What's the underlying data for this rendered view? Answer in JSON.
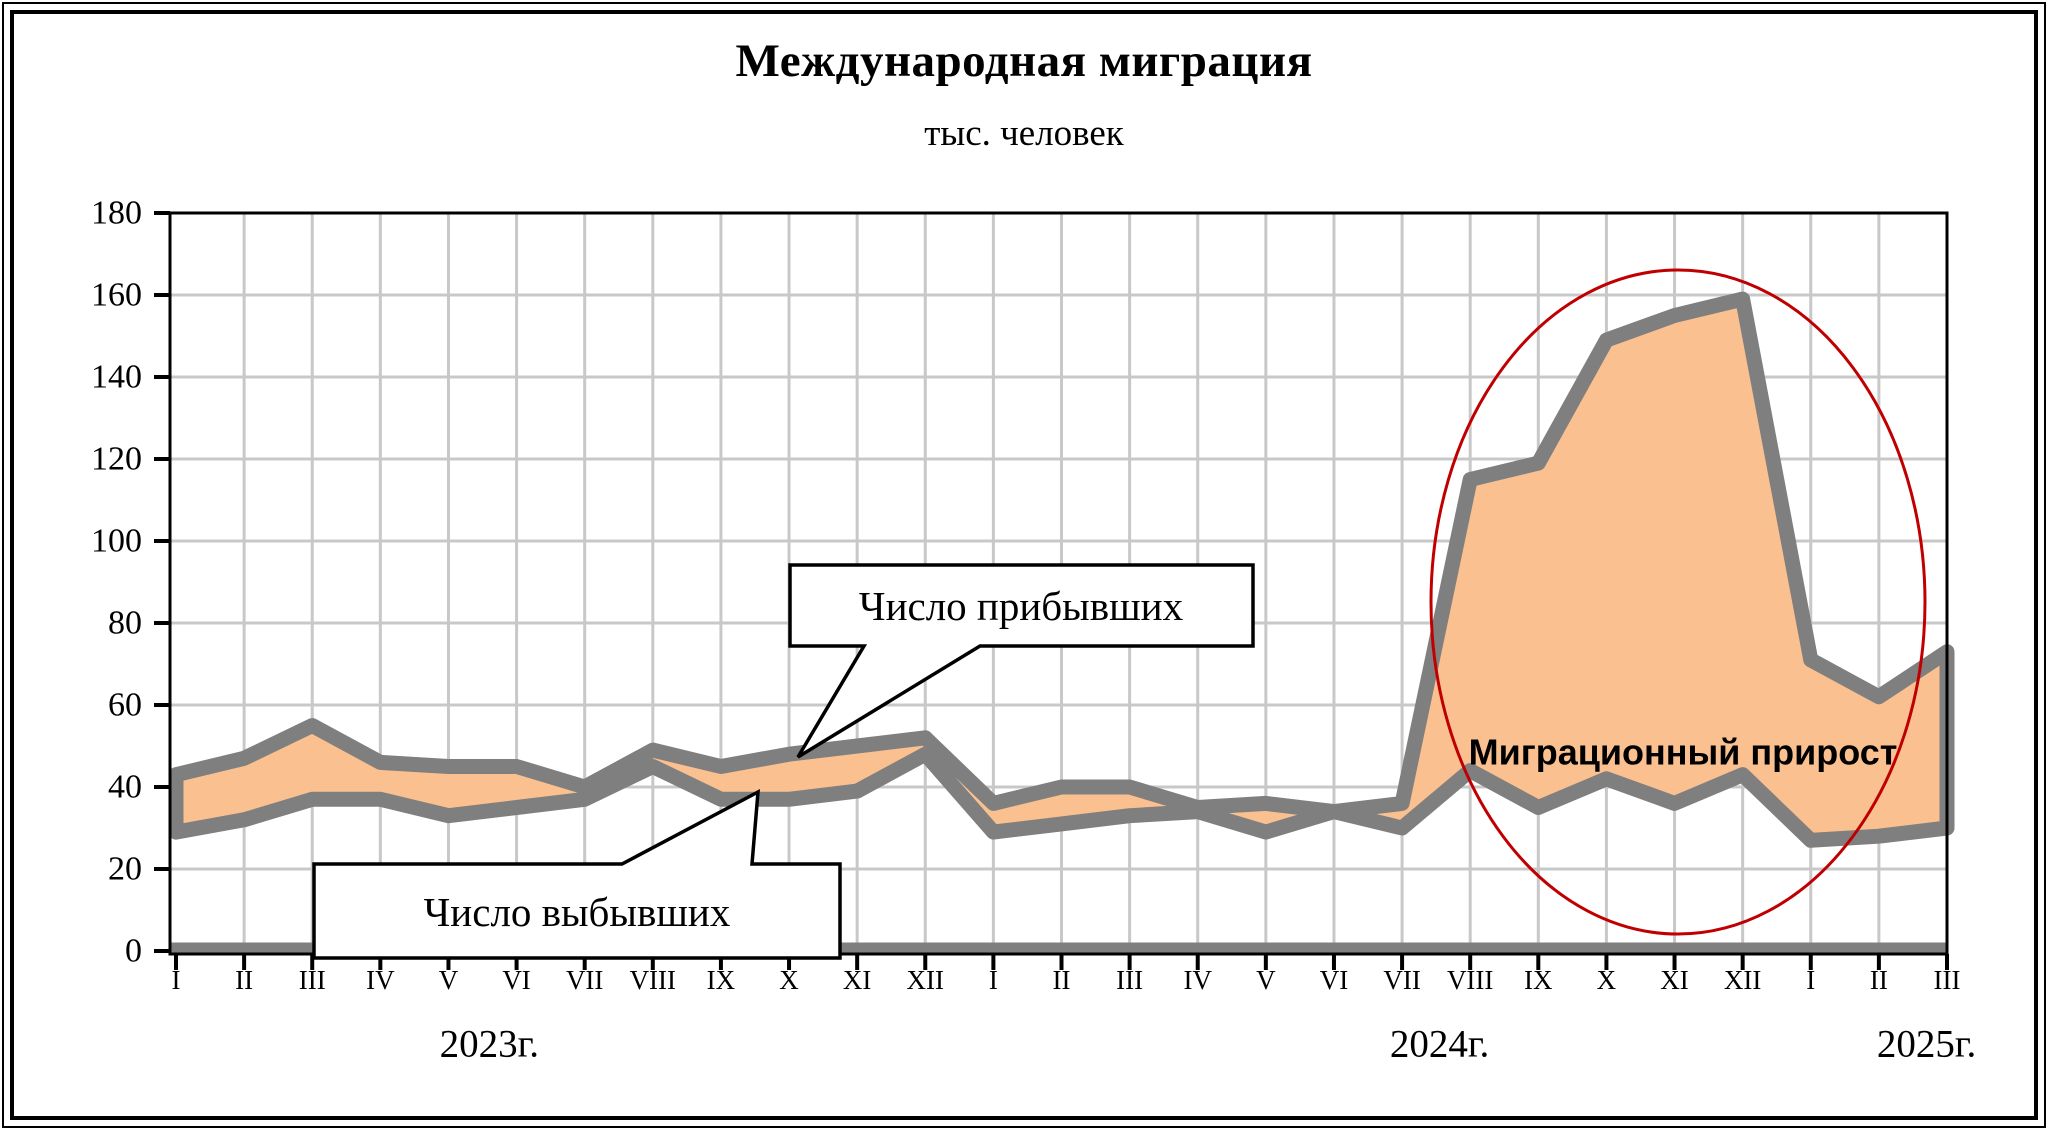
{
  "title": "Международная миграция",
  "subtitle": "тыс. человек",
  "colors": {
    "band_fill": "#FAC090",
    "series_line": "#7F7F7F",
    "gridline": "#C8C8C8",
    "axis": "#000000",
    "ellipse": "#C00000",
    "callout_bg": "#FFFFFF",
    "text": "#000000"
  },
  "chart_data": {
    "type": "area",
    "title": "Международная миграция",
    "subtitle": "тыс. человек",
    "ylim": [
      0,
      180
    ],
    "ytick_step": 20,
    "y_ticks": [
      0,
      20,
      40,
      60,
      80,
      100,
      120,
      140,
      160,
      180
    ],
    "grid": "on",
    "categories": [
      "I",
      "II",
      "III",
      "IV",
      "V",
      "VI",
      "VII",
      "VIII",
      "IX",
      "X",
      "XI",
      "XII",
      "I",
      "II",
      "III",
      "IV",
      "V",
      "VI",
      "VII",
      "VIII",
      "IX",
      "X",
      "XI",
      "XII",
      "I",
      "II",
      "III"
    ],
    "year_labels": [
      {
        "label": "2023г.",
        "anchor_month_index": 4.6
      },
      {
        "label": "2024г.",
        "anchor_month_index": 18.55
      },
      {
        "label": "2025г.",
        "anchor_month_index": 25.7
      }
    ],
    "series": [
      {
        "name": "Число прибывших",
        "values": [
          43,
          47,
          55,
          46,
          45,
          45,
          40,
          49,
          45,
          48,
          50,
          52,
          36,
          40,
          40,
          35,
          36,
          34,
          36,
          115,
          119,
          149,
          155,
          159,
          71,
          62,
          73
        ]
      },
      {
        "name": "Число выбывших",
        "values": [
          29,
          32,
          37,
          37,
          33,
          35,
          37,
          45,
          37,
          37,
          39,
          48,
          29,
          31,
          33,
          34,
          29,
          34,
          30,
          44,
          35,
          42,
          36,
          43,
          27,
          28,
          30
        ]
      }
    ],
    "annotations": {
      "band_label": "Миграционный прирост",
      "callout_arrivals": "Число прибывших",
      "callout_departures": "Число выбывших",
      "ellipse_highlight": "months 2024-VIII through 2025-II"
    }
  }
}
